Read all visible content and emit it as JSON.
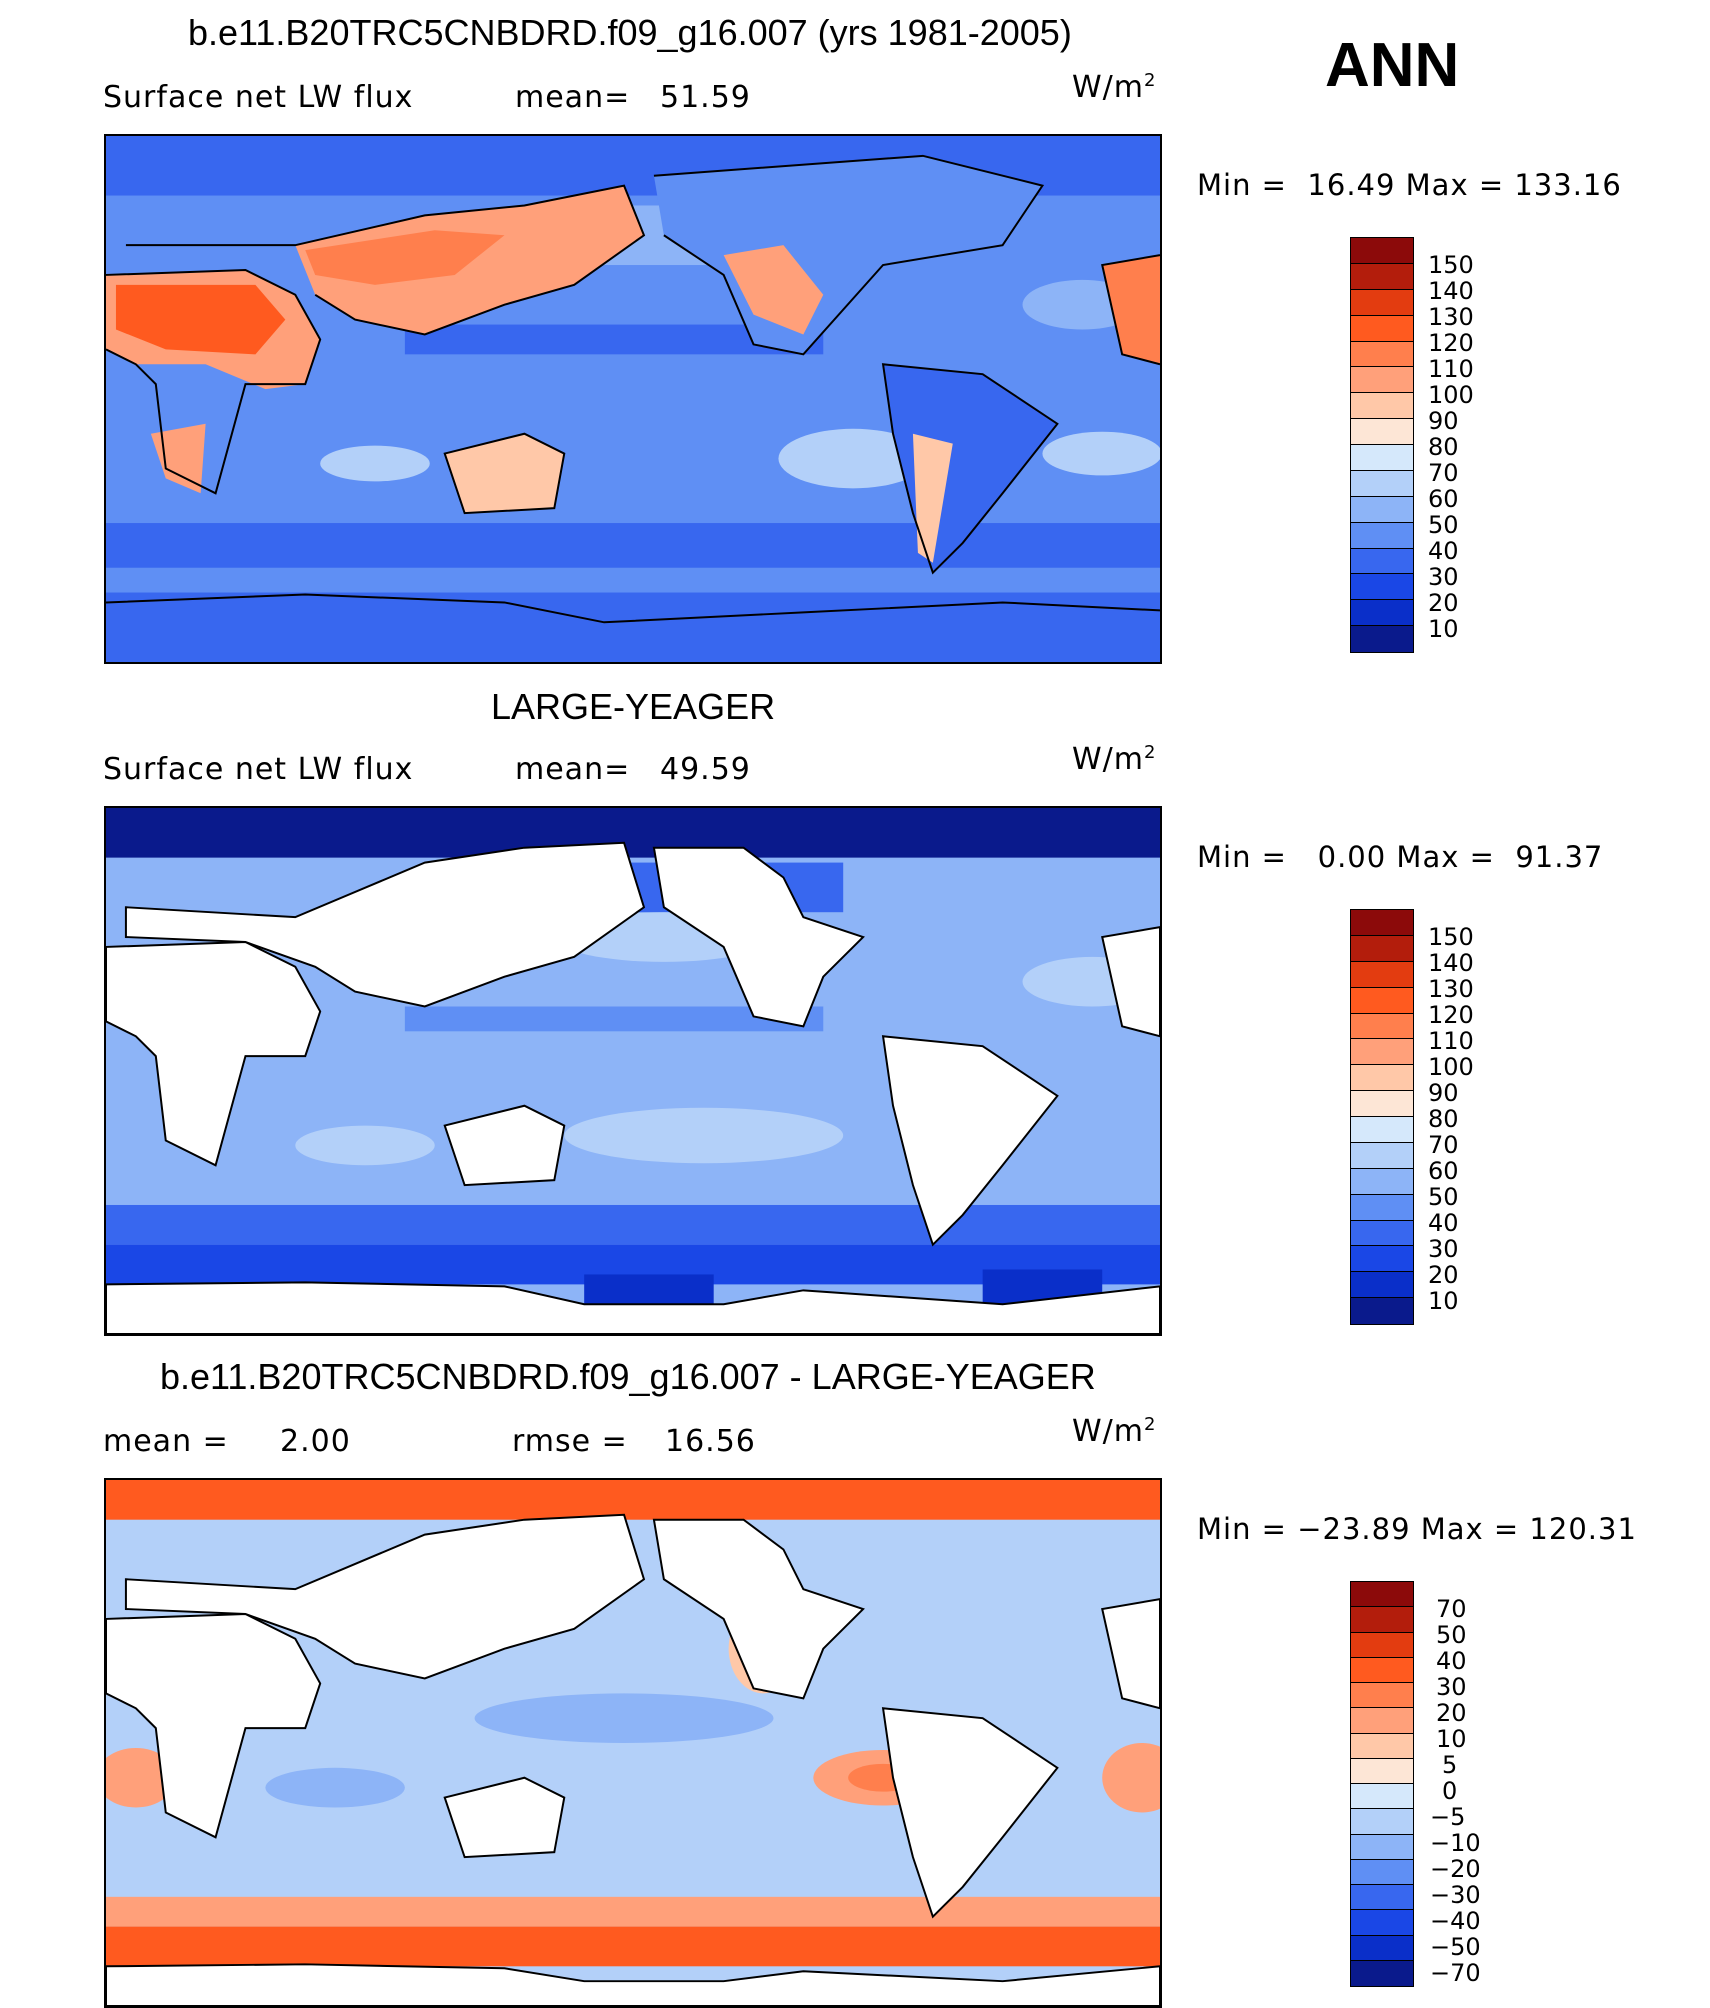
{
  "season": "ANN",
  "panels": [
    {
      "title": "b.e11.B20TRC5CNBDRD.f09_g16.007 (yrs 1981-2005)",
      "left_label": "Surface net LW flux",
      "stat_label": "mean=",
      "stat_value": "51.59",
      "units": "W/m",
      "units_sup": "2",
      "min_text": "Min =  16.49 Max = 133.16",
      "colorbar_labels": [
        "150",
        "140",
        "130",
        "120",
        "110",
        "100",
        "90",
        "80",
        "70",
        "60",
        "50",
        "40",
        "30",
        "20",
        "10"
      ],
      "palette": [
        "#8c0a0a",
        "#b31d0c",
        "#e33c10",
        "#ff5a1f",
        "#ff7f4d",
        "#ffa07a",
        "#ffc8a8",
        "#fde6d6",
        "#d5e8fb",
        "#b3d0f9",
        "#8db4f7",
        "#5f8ff4",
        "#3867ef",
        "#1a47e6",
        "#0a2fc9",
        "#0a1a8c"
      ],
      "colors": {
        "ocean_base": "#5f8ff4",
        "ocean_light": "#8db4f7",
        "ocean_pale": "#b3d0f9",
        "ocean_dark": "#3867ef",
        "ice": "#1a47e6",
        "land_hot": "#ff7f4d",
        "land_warm": "#ffc8a8"
      }
    },
    {
      "title": "LARGE-YEAGER",
      "left_label": "Surface net LW flux",
      "stat_label": "mean=",
      "stat_value": "49.59",
      "units": "W/m",
      "units_sup": "2",
      "min_text": "Min =   0.00 Max =  91.37",
      "colorbar_labels": [
        "150",
        "140",
        "130",
        "120",
        "110",
        "100",
        "90",
        "80",
        "70",
        "60",
        "50",
        "40",
        "30",
        "20",
        "10"
      ],
      "palette": [
        "#8c0a0a",
        "#b31d0c",
        "#e33c10",
        "#ff5a1f",
        "#ff7f4d",
        "#ffa07a",
        "#ffc8a8",
        "#fde6d6",
        "#d5e8fb",
        "#b3d0f9",
        "#8db4f7",
        "#5f8ff4",
        "#3867ef",
        "#1a47e6",
        "#0a2fc9",
        "#0a1a8c"
      ],
      "colors": {
        "ocean_base": "#5f8ff4",
        "ocean_light": "#8db4f7",
        "ocean_pale": "#b3d0f9",
        "ocean_dark": "#3867ef",
        "ice": "#0a1a8c",
        "land": "#ffffff"
      }
    },
    {
      "title": "b.e11.B20TRC5CNBDRD.f09_g16.007 - LARGE-YEAGER",
      "left_label": "mean =",
      "left_value": "2.00",
      "stat_label": "rmse =",
      "stat_value": "16.56",
      "units": "W/m",
      "units_sup": "2",
      "min_text": "Min = −23.89 Max = 120.31",
      "colorbar_labels": [
        "70",
        "50",
        "40",
        "30",
        "20",
        "10",
        "5",
        "0",
        "−5",
        "−10",
        "−20",
        "−30",
        "−40",
        "−50",
        "−70"
      ],
      "palette": [
        "#8c0a0a",
        "#b31d0c",
        "#e33c10",
        "#ff5a1f",
        "#ff7f4d",
        "#ffa07a",
        "#ffc8a8",
        "#fde6d6",
        "#d5e8fb",
        "#b3d0f9",
        "#8db4f7",
        "#5f8ff4",
        "#3867ef",
        "#1a47e6",
        "#0a2fc9",
        "#0a1a8c"
      ],
      "colors": {
        "ocean_base": "#b3d0f9",
        "ocean_light": "#d5e8fb",
        "ocean_mid": "#8db4f7",
        "polar": "#ff5a1f",
        "coast": "#ffa07a",
        "land": "#ffffff"
      }
    }
  ]
}
